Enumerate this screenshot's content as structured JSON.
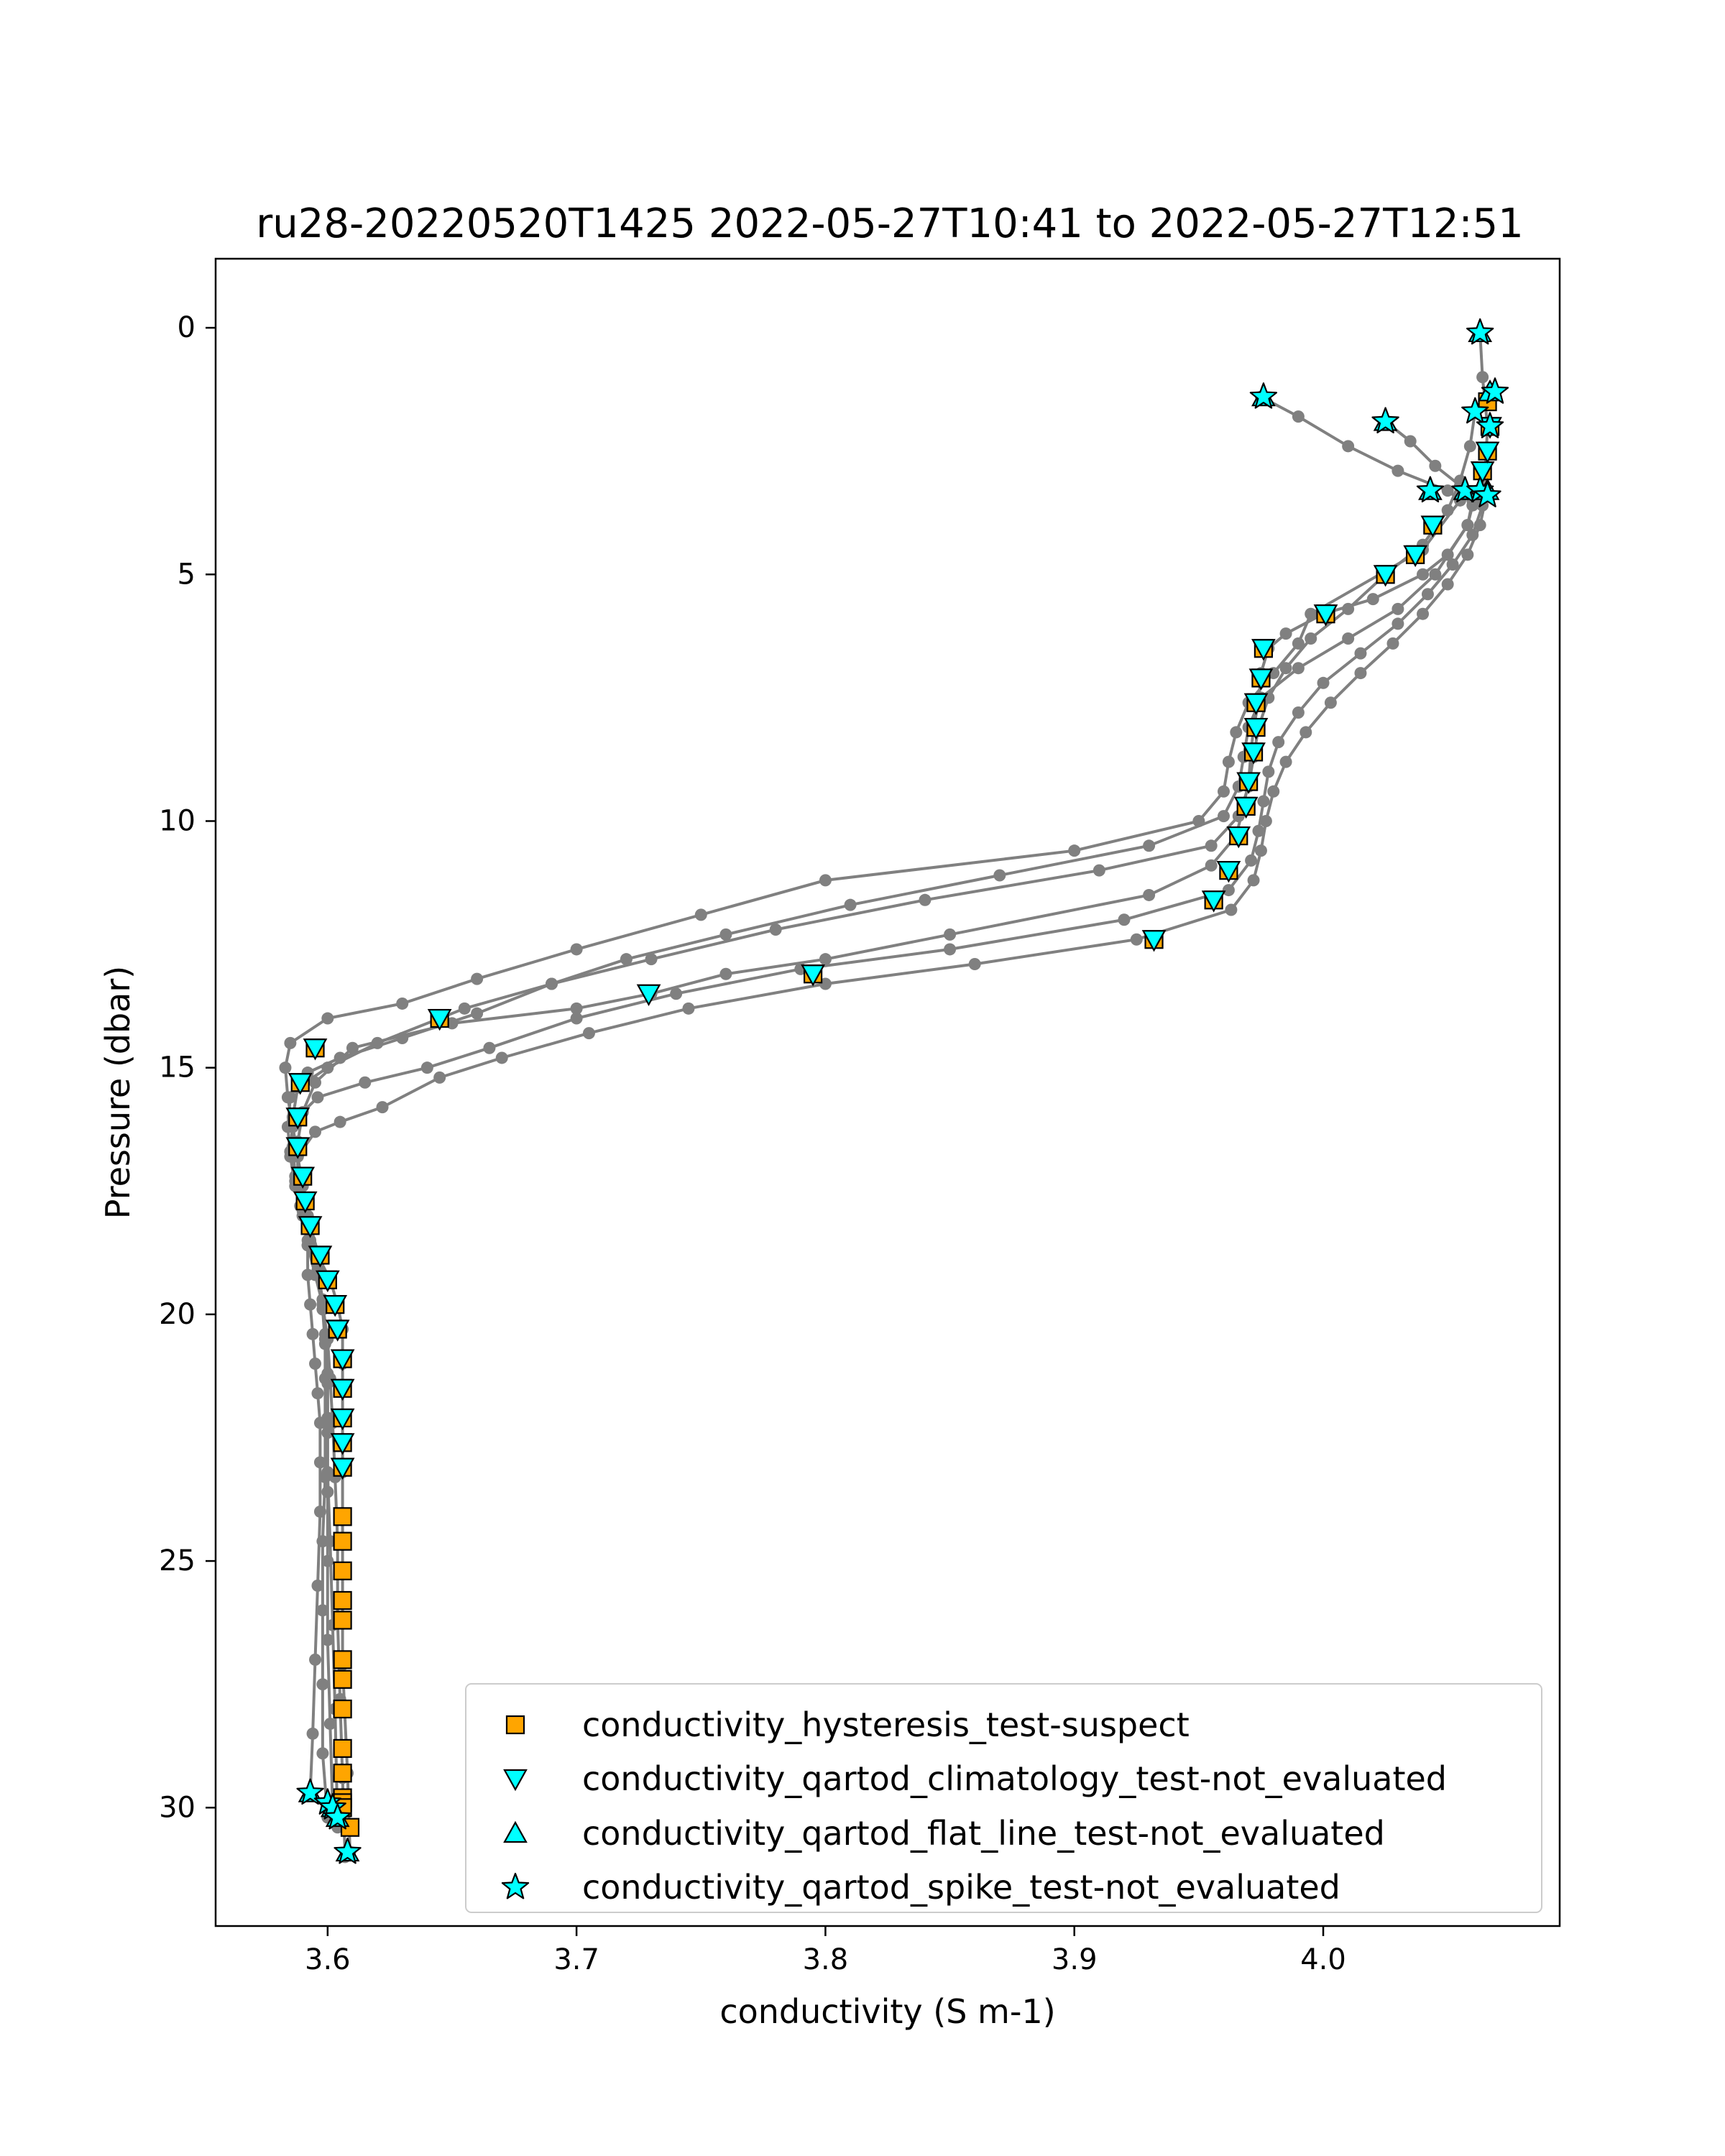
{
  "chart_data": {
    "type": "scatter",
    "title": "ru28-20220520T1425 2022-05-27T10:41 to 2022-05-27T12:51",
    "xlabel": "conductivity (S m-1)",
    "ylabel": "Pressure (dbar)",
    "xlim": [
      3.555,
      4.095
    ],
    "ylim": [
      32.4,
      -1.4
    ],
    "y_inverted": true,
    "xticks": [
      3.6,
      3.7,
      3.8,
      3.9,
      4.0
    ],
    "xtick_labels": [
      "3.6",
      "3.7",
      "3.8",
      "3.9",
      "4.0"
    ],
    "yticks": [
      0,
      5,
      10,
      15,
      20,
      25,
      30
    ],
    "ytick_labels": [
      "0",
      "5",
      "10",
      "15",
      "20",
      "25",
      "30"
    ],
    "grid": false,
    "legend_position": "lower-right",
    "colors": {
      "profile_line": "#808080",
      "suspect": "#ffa500",
      "not_evaluated": "#00ffff",
      "marker_edge": "#000000"
    },
    "profiles": [
      {
        "x": [
          4.063,
          4.064,
          4.066,
          4.065,
          4.063,
          4.06,
          4.058,
          4.05,
          4.04,
          4.02,
          4.0,
          3.985,
          3.978,
          3.975,
          3.974,
          3.972,
          3.971,
          3.97,
          3.968,
          3.965,
          3.955,
          3.93,
          3.85,
          3.8,
          3.76,
          3.73,
          3.7,
          3.65,
          3.61,
          3.595,
          3.59,
          3.588,
          3.588,
          3.59,
          3.593,
          3.597,
          3.601,
          3.604,
          3.606,
          3.606,
          3.606,
          3.606,
          3.606,
          3.606,
          3.606,
          3.606,
          3.606,
          3.608,
          3.609
        ],
        "y": [
          0.1,
          1.0,
          2.0,
          3.0,
          3.4,
          3.6,
          4.0,
          4.6,
          5.0,
          5.5,
          5.8,
          6.2,
          6.5,
          7.0,
          7.6,
          8.1,
          8.6,
          9.2,
          9.7,
          10.3,
          10.9,
          11.5,
          12.3,
          12.8,
          13.1,
          13.5,
          13.8,
          14.1,
          14.6,
          15.3,
          15.9,
          16.5,
          17.2,
          17.7,
          18.2,
          18.9,
          19.3,
          19.8,
          20.3,
          21.0,
          21.5,
          22.1,
          22.6,
          23.2,
          24.1,
          25.2,
          27.1,
          29.3,
          30.9
        ]
      },
      {
        "x": [
          3.975,
          3.99,
          4.01,
          4.03,
          4.05,
          4.055,
          4.04,
          3.995,
          3.99,
          3.98,
          3.97,
          3.965,
          3.962,
          3.96,
          3.95,
          3.9,
          3.8,
          3.75,
          3.7,
          3.66,
          3.63,
          3.6,
          3.585,
          3.583,
          3.584,
          3.586,
          3.588,
          3.59,
          3.592,
          3.592,
          3.592,
          3.593,
          3.594,
          3.595,
          3.596,
          3.597,
          3.597,
          3.597,
          3.596,
          3.595,
          3.594,
          3.593
        ],
        "y": [
          1.4,
          1.8,
          2.4,
          2.9,
          3.3,
          3.5,
          4.5,
          5.8,
          6.4,
          7.0,
          7.6,
          8.2,
          8.8,
          9.4,
          10.0,
          10.6,
          11.2,
          11.9,
          12.6,
          13.2,
          13.7,
          14.0,
          14.5,
          15.0,
          15.6,
          16.2,
          16.8,
          17.4,
          18.0,
          18.6,
          19.2,
          19.8,
          20.4,
          21.0,
          21.6,
          22.2,
          23.0,
          24.0,
          25.5,
          27.0,
          28.5,
          29.7
        ]
      },
      {
        "x": [
          4.025,
          4.035,
          4.045,
          4.055,
          4.06,
          4.058,
          4.045,
          4.03,
          4.01,
          3.99,
          3.975,
          3.97,
          3.968,
          3.966,
          3.96,
          3.93,
          3.87,
          3.81,
          3.76,
          3.72,
          3.69,
          3.655,
          3.62,
          3.6,
          3.588,
          3.586,
          3.586,
          3.587,
          3.589,
          3.592,
          3.596,
          3.598,
          3.599,
          3.6,
          3.6,
          3.6,
          3.6,
          3.6,
          3.601,
          3.602
        ],
        "y": [
          1.9,
          2.3,
          2.8,
          3.2,
          3.5,
          4.0,
          5.0,
          5.7,
          6.3,
          6.9,
          7.5,
          8.1,
          8.7,
          9.3,
          9.9,
          10.5,
          11.1,
          11.7,
          12.3,
          12.8,
          13.3,
          13.8,
          14.5,
          15.0,
          15.4,
          16.0,
          16.6,
          17.2,
          17.8,
          18.5,
          19.2,
          19.9,
          20.6,
          21.4,
          22.4,
          23.6,
          25.0,
          26.6,
          28.3,
          30.0
        ]
      },
      {
        "x": [
          4.061,
          4.059,
          4.055,
          4.05,
          4.04,
          4.025,
          4.01,
          3.995,
          3.985,
          3.978,
          3.974,
          3.972,
          3.97,
          3.966,
          3.955,
          3.91,
          3.84,
          3.78,
          3.73,
          3.69,
          3.66,
          3.63,
          3.605,
          3.592,
          3.585,
          3.584,
          3.585,
          3.587,
          3.59,
          3.593,
          3.596,
          3.598,
          3.599,
          3.599,
          3.599,
          3.599,
          3.598,
          3.598,
          3.598,
          3.598,
          3.6
        ],
        "y": [
          1.7,
          2.4,
          3.1,
          3.7,
          4.4,
          5.0,
          5.7,
          6.3,
          6.9,
          7.5,
          8.1,
          8.7,
          9.3,
          9.9,
          10.5,
          11.0,
          11.6,
          12.2,
          12.8,
          13.3,
          13.9,
          14.4,
          14.8,
          15.1,
          15.6,
          16.2,
          16.8,
          17.4,
          18.0,
          18.6,
          19.2,
          19.8,
          20.5,
          21.3,
          22.2,
          23.3,
          24.6,
          26.0,
          27.5,
          28.9,
          30.2
        ]
      },
      {
        "x": [
          4.062,
          4.064,
          4.06,
          4.052,
          4.042,
          4.03,
          4.015,
          4.0,
          3.99,
          3.982,
          3.978,
          3.976,
          3.974,
          3.971,
          3.962,
          3.92,
          3.85,
          3.79,
          3.74,
          3.7,
          3.665,
          3.64,
          3.615,
          3.596,
          3.586,
          3.585,
          3.587,
          3.59,
          3.593,
          3.596,
          3.598,
          3.599,
          3.6,
          3.6,
          3.6,
          3.601,
          3.602,
          3.603,
          3.604
        ],
        "y": [
          3.3,
          3.6,
          4.2,
          4.8,
          5.4,
          6.0,
          6.6,
          7.2,
          7.8,
          8.4,
          9.0,
          9.6,
          10.2,
          10.8,
          11.4,
          12.0,
          12.6,
          13.0,
          13.5,
          14.0,
          14.6,
          15.0,
          15.3,
          15.6,
          16.1,
          16.7,
          17.3,
          17.9,
          18.5,
          19.1,
          19.7,
          20.4,
          21.2,
          22.1,
          23.2,
          24.6,
          26.3,
          28.0,
          30.4
        ]
      },
      {
        "x": [
          4.066,
          4.063,
          4.058,
          4.05,
          4.04,
          4.028,
          4.015,
          4.003,
          3.993,
          3.985,
          3.98,
          3.977,
          3.975,
          3.972,
          3.963,
          3.925,
          3.86,
          3.8,
          3.745,
          3.705,
          3.67,
          3.645,
          3.622,
          3.605,
          3.595,
          3.588,
          3.588,
          3.59,
          3.592,
          3.595,
          3.598,
          3.6,
          3.601,
          3.602,
          3.603,
          3.604,
          3.604,
          3.605,
          3.606,
          3.607
        ],
        "y": [
          3.3,
          4.0,
          4.6,
          5.2,
          5.8,
          6.4,
          7.0,
          7.6,
          8.2,
          8.8,
          9.4,
          10.0,
          10.6,
          11.2,
          11.8,
          12.4,
          12.9,
          13.3,
          13.8,
          14.3,
          14.8,
          15.2,
          15.8,
          16.1,
          16.3,
          16.8,
          17.4,
          18.0,
          18.6,
          19.2,
          19.8,
          20.5,
          21.3,
          22.2,
          23.3,
          24.6,
          26.2,
          27.8,
          29.4,
          31.0
        ]
      }
    ],
    "series": [
      {
        "name": "conductivity_hysteresis_test-suspect",
        "marker": "square",
        "color": "#ffa500",
        "x": [
          3.606,
          3.606,
          3.606,
          3.606,
          3.606,
          3.606,
          3.606,
          3.606,
          3.606,
          3.606,
          3.606,
          3.606,
          3.606,
          3.609,
          3.645,
          3.595,
          3.589,
          3.588,
          3.588,
          3.59,
          3.591,
          3.593,
          3.597,
          3.6,
          3.603,
          3.604,
          3.606,
          3.606,
          3.606,
          3.606,
          3.606,
          3.795,
          3.932,
          3.956,
          3.962,
          3.966,
          3.969,
          3.97,
          3.972,
          3.973,
          3.973,
          3.975,
          3.976,
          4.001,
          4.025,
          4.037,
          4.044,
          4.064,
          4.066,
          4.067,
          4.066
        ],
        "y": [
          24.1,
          24.6,
          25.2,
          25.8,
          26.2,
          27.0,
          27.4,
          28.0,
          28.8,
          29.3,
          29.8,
          29.9,
          30.0,
          30.4,
          14.0,
          14.6,
          15.3,
          16.0,
          16.6,
          17.2,
          17.7,
          18.2,
          18.8,
          19.3,
          19.8,
          20.3,
          20.9,
          21.5,
          22.1,
          22.6,
          23.1,
          13.1,
          12.4,
          11.6,
          11.0,
          10.3,
          9.7,
          9.2,
          8.6,
          8.1,
          7.6,
          7.1,
          6.5,
          5.8,
          5.0,
          4.6,
          4.0,
          2.9,
          2.5,
          2.0,
          1.5
        ]
      },
      {
        "name": "conductivity_qartod_climatology_test-not_evaluated",
        "marker": "triangle-down",
        "color": "#00ffff",
        "x": [
          3.645,
          3.595,
          3.589,
          3.588,
          3.588,
          3.59,
          3.591,
          3.593,
          3.597,
          3.6,
          3.603,
          3.604,
          3.606,
          3.606,
          3.606,
          3.606,
          3.606,
          3.729,
          3.795,
          3.932,
          3.956,
          3.962,
          3.966,
          3.969,
          3.97,
          3.972,
          3.973,
          3.973,
          3.975,
          3.976,
          4.001,
          4.025,
          4.037,
          4.044,
          4.064,
          4.066,
          4.067
        ],
        "y": [
          14.0,
          14.6,
          15.3,
          16.0,
          16.6,
          17.2,
          17.7,
          18.2,
          18.8,
          19.3,
          19.8,
          20.3,
          20.9,
          21.5,
          22.1,
          22.6,
          23.1,
          13.5,
          13.1,
          12.4,
          11.6,
          11.0,
          10.3,
          9.7,
          9.2,
          8.6,
          8.1,
          7.6,
          7.1,
          6.5,
          5.8,
          5.0,
          4.6,
          4.0,
          2.9,
          2.5,
          2.0
        ]
      },
      {
        "name": "conductivity_qartod_flat_line_test-not_evaluated",
        "marker": "triangle-up",
        "color": "#00ffff",
        "x": [
          4.063,
          4.067,
          3.976,
          4.025,
          4.043,
          4.057,
          4.066,
          3.593,
          3.602,
          3.604,
          3.608
        ],
        "y": [
          0.1,
          1.3,
          1.4,
          1.9,
          3.3,
          3.3,
          3.3,
          29.7,
          30.0,
          30.2,
          30.9
        ]
      },
      {
        "name": "conductivity_qartod_spike_test-not_evaluated",
        "marker": "star",
        "color": "#00ffff",
        "x": [
          4.063,
          4.069,
          3.976,
          4.025,
          4.061,
          4.067,
          4.043,
          4.057,
          4.063,
          4.066,
          3.593,
          3.6,
          3.602,
          3.604,
          3.608
        ],
        "y": [
          0.1,
          1.3,
          1.4,
          1.9,
          1.7,
          2.0,
          3.3,
          3.3,
          3.3,
          3.4,
          29.7,
          29.9,
          30.0,
          30.2,
          30.9
        ]
      }
    ]
  }
}
